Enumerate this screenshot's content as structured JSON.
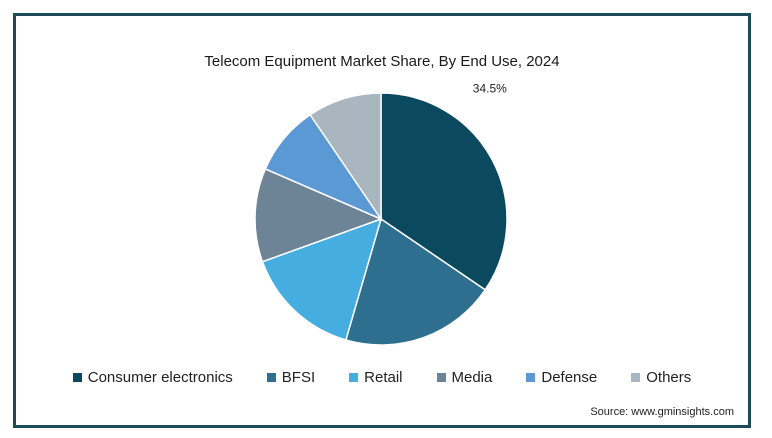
{
  "chart_data": {
    "type": "pie",
    "title": "Telecom Equipment Market Share, By End Use, 2024",
    "slices": [
      {
        "name": "Consumer electronics",
        "value": 34.5,
        "color": "#0b4a5e",
        "label": "34.5%"
      },
      {
        "name": "BFSI",
        "value": 20,
        "color": "#2e6e8e",
        "label": ""
      },
      {
        "name": "Retail",
        "value": 15,
        "color": "#45ade0",
        "label": ""
      },
      {
        "name": "Media",
        "value": 12,
        "color": "#6d8396",
        "label": ""
      },
      {
        "name": "Defense",
        "value": 9,
        "color": "#5a99d4",
        "label": ""
      },
      {
        "name": "Others",
        "value": 9.5,
        "color": "#a9b6bf",
        "label": ""
      }
    ],
    "legend": {
      "position": "bottom"
    }
  },
  "source": "Source: www.gminsights.com"
}
